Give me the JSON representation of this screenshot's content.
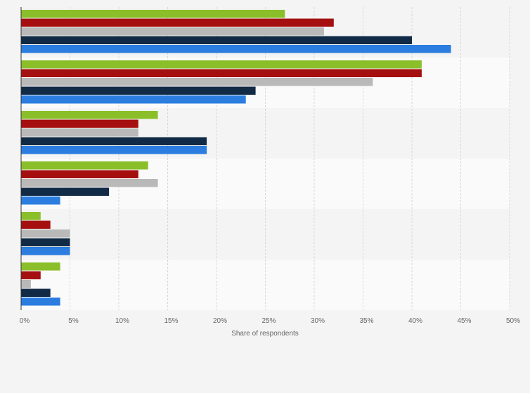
{
  "chart_data": {
    "type": "bar",
    "orientation": "horizontal",
    "categories": [
      "",
      "",
      "",
      "",
      "",
      ""
    ],
    "series": [
      {
        "color": "#8bbf2a",
        "values": [
          27,
          41,
          14,
          13,
          2,
          4
        ]
      },
      {
        "color": "#a50f0f",
        "values": [
          32,
          41,
          12,
          12,
          3,
          2
        ]
      },
      {
        "color": "#b9b9b9",
        "values": [
          31,
          36,
          12,
          14,
          5,
          1
        ]
      },
      {
        "color": "#112a45",
        "values": [
          40,
          24,
          19,
          9,
          5,
          3
        ]
      },
      {
        "color": "#2b7de0",
        "values": [
          44,
          23,
          19,
          4,
          5,
          4
        ]
      }
    ],
    "xlabel": "Share of respondents",
    "xlim": [
      0,
      50
    ],
    "xticks": [
      "0%",
      "5%",
      "10%",
      "15%",
      "20%",
      "25%",
      "30%",
      "35%",
      "40%",
      "45%",
      "50%"
    ],
    "grid": true,
    "legend": "none"
  }
}
